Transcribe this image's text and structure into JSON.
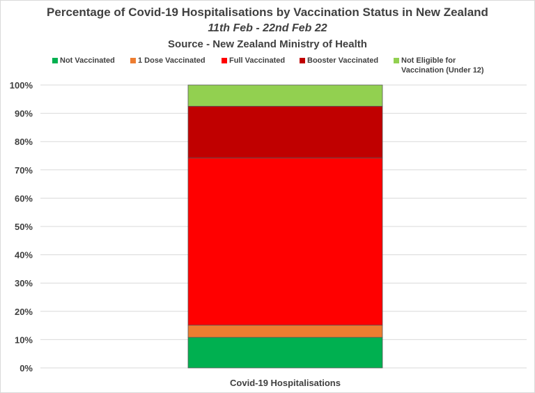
{
  "chart_data": {
    "type": "bar",
    "stacked": true,
    "title": "Percentage of Covid-19 Hospitalisations by Vaccination Status in New Zealand",
    "subtitle": "11th Feb - 22nd Feb 22",
    "source": "Source - New Zealand Ministry of Health",
    "categories": [
      "Covid-19 Hospitalisations"
    ],
    "ylim": [
      0,
      100
    ],
    "yticks": [
      "0%",
      "10%",
      "20%",
      "30%",
      "40%",
      "50%",
      "60%",
      "70%",
      "80%",
      "90%",
      "100%"
    ],
    "grid": true,
    "legend_position": "top",
    "series": [
      {
        "name": "Not Vaccinated",
        "values": [
          10.8
        ],
        "color": "#00b050"
      },
      {
        "name": "1 Dose Vaccinated",
        "values": [
          4.3
        ],
        "color": "#ed7d31"
      },
      {
        "name": "Full Vaccinated",
        "values": [
          59.1
        ],
        "color": "#ff0000"
      },
      {
        "name": "Booster Vaccinated",
        "values": [
          18.3
        ],
        "color": "#c00000"
      },
      {
        "name": "Not Eligible for\nVaccination (Under 12)",
        "values": [
          7.5
        ],
        "color": "#92d050"
      }
    ]
  }
}
